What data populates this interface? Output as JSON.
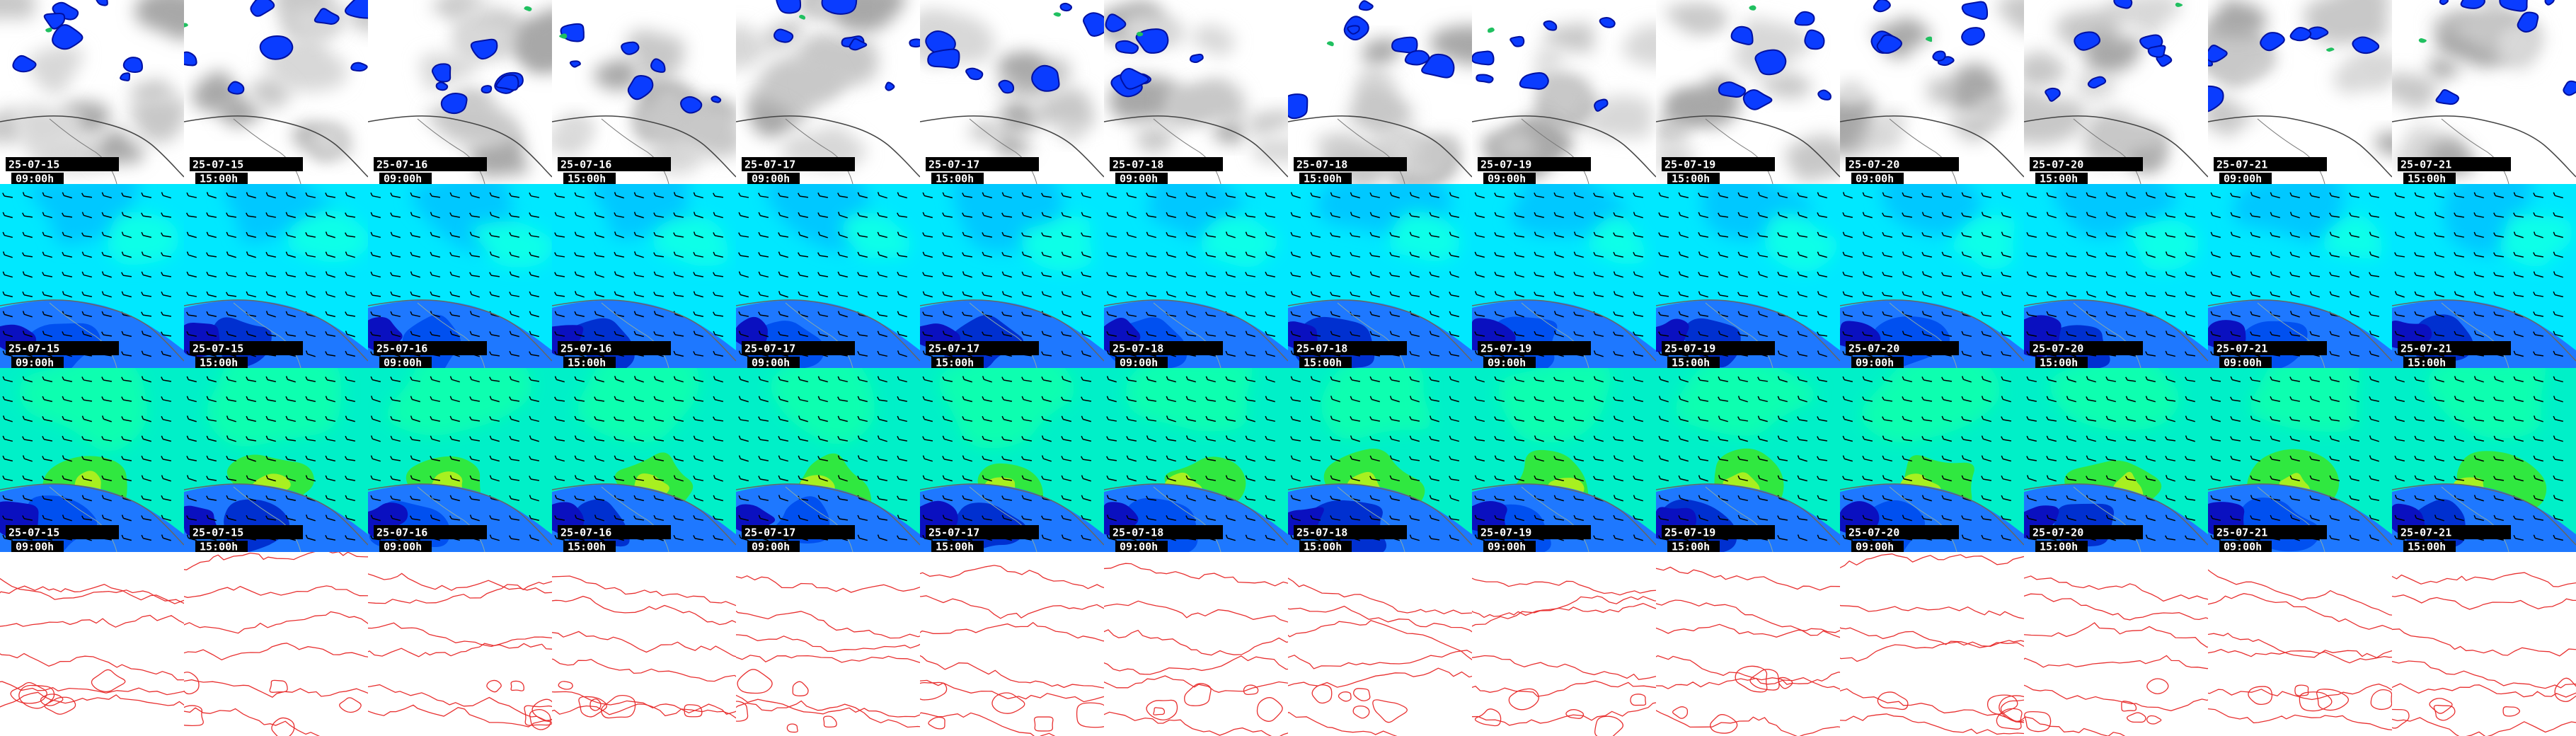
{
  "columns": [
    {
      "date": "25-07-15",
      "time": "09:00h"
    },
    {
      "date": "25-07-15",
      "time": "15:00h"
    },
    {
      "date": "25-07-16",
      "time": "09:00h"
    },
    {
      "date": "25-07-16",
      "time": "15:00h"
    },
    {
      "date": "25-07-17",
      "time": "09:00h"
    },
    {
      "date": "25-07-17",
      "time": "15:00h"
    },
    {
      "date": "25-07-18",
      "time": "09:00h"
    },
    {
      "date": "25-07-18",
      "time": "15:00h"
    },
    {
      "date": "25-07-19",
      "time": "09:00h"
    },
    {
      "date": "25-07-19",
      "time": "15:00h"
    },
    {
      "date": "25-07-20",
      "time": "09:00h"
    },
    {
      "date": "25-07-20",
      "time": "15:00h"
    },
    {
      "date": "25-07-21",
      "time": "09:00h"
    },
    {
      "date": "25-07-21",
      "time": "15:00h"
    }
  ]
}
